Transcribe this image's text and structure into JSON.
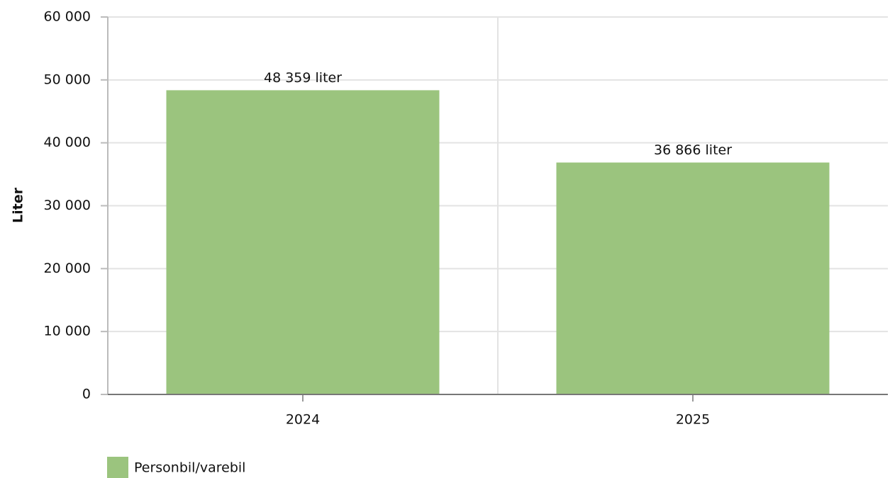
{
  "chart_data": {
    "type": "bar",
    "y_label": "Liter",
    "categories": [
      "2024",
      "2025"
    ],
    "series": [
      {
        "name": "Personbil/varebil",
        "color": "#9bc47e",
        "values": [
          48359,
          36866
        ],
        "value_labels": [
          "48 359 liter",
          "36 866 liter"
        ]
      }
    ],
    "ylim": [
      0,
      60000
    ],
    "yticks": [
      0,
      {
        "value": 10000,
        "label": "10 000"
      },
      {
        "value": 20000,
        "label": "20 000"
      },
      {
        "value": 30000,
        "label": "30 000"
      },
      {
        "value": 40000,
        "label": "40 000"
      },
      {
        "value": 50000,
        "label": "50 000"
      },
      {
        "value": 60000,
        "label": "60 000"
      }
    ],
    "grid": true,
    "legend": "bottom-left"
  }
}
